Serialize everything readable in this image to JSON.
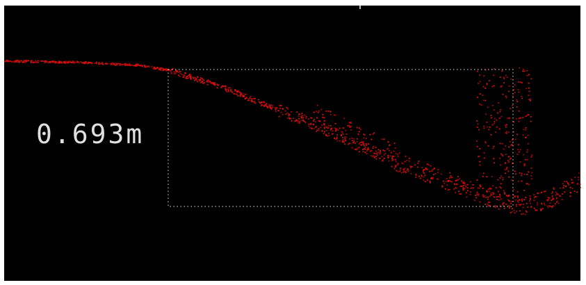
{
  "measurement": {
    "label": "0.693m"
  }
}
